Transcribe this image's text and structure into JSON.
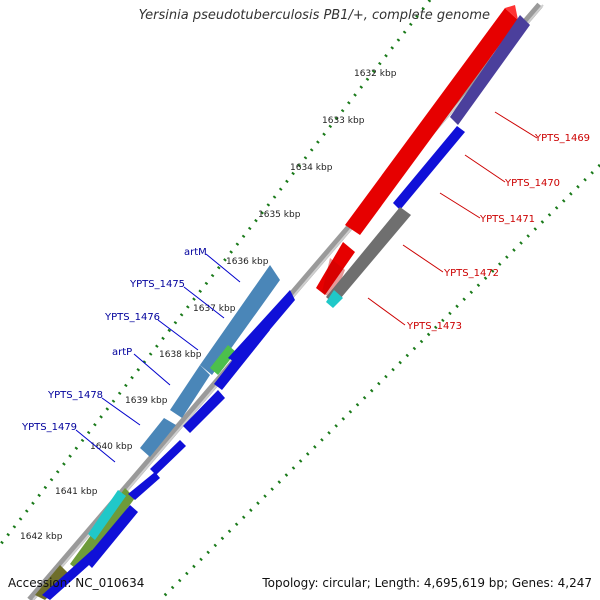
{
  "title": "Yersinia pseudotuberculosis PB1/+, complete genome",
  "accession": "Accession: NC_010634",
  "summary": "Topology: circular; Length: 4,695,619 bp; Genes: 4,247",
  "ticks": [
    "1632 kbp",
    "1633 kbp",
    "1634 kbp",
    "1635 kbp",
    "1636 kbp",
    "1637 kbp",
    "1638 kbp",
    "1639 kbp",
    "1640 kbp",
    "1641 kbp",
    "1642 kbp"
  ],
  "genes_red": [
    "YPTS_1469",
    "YPTS_1470",
    "YPTS_1471",
    "YPTS_1472",
    "YPTS_1473"
  ],
  "genes_blue": [
    "artM",
    "YPTS_1475",
    "YPTS_1476",
    "artP",
    "YPTS_1478",
    "YPTS_1479"
  ],
  "colors": {
    "red_label": "#cc0000",
    "blue_label": "#00009c",
    "tick": "#1a7a1a",
    "backbone": "#7a7a7a"
  }
}
